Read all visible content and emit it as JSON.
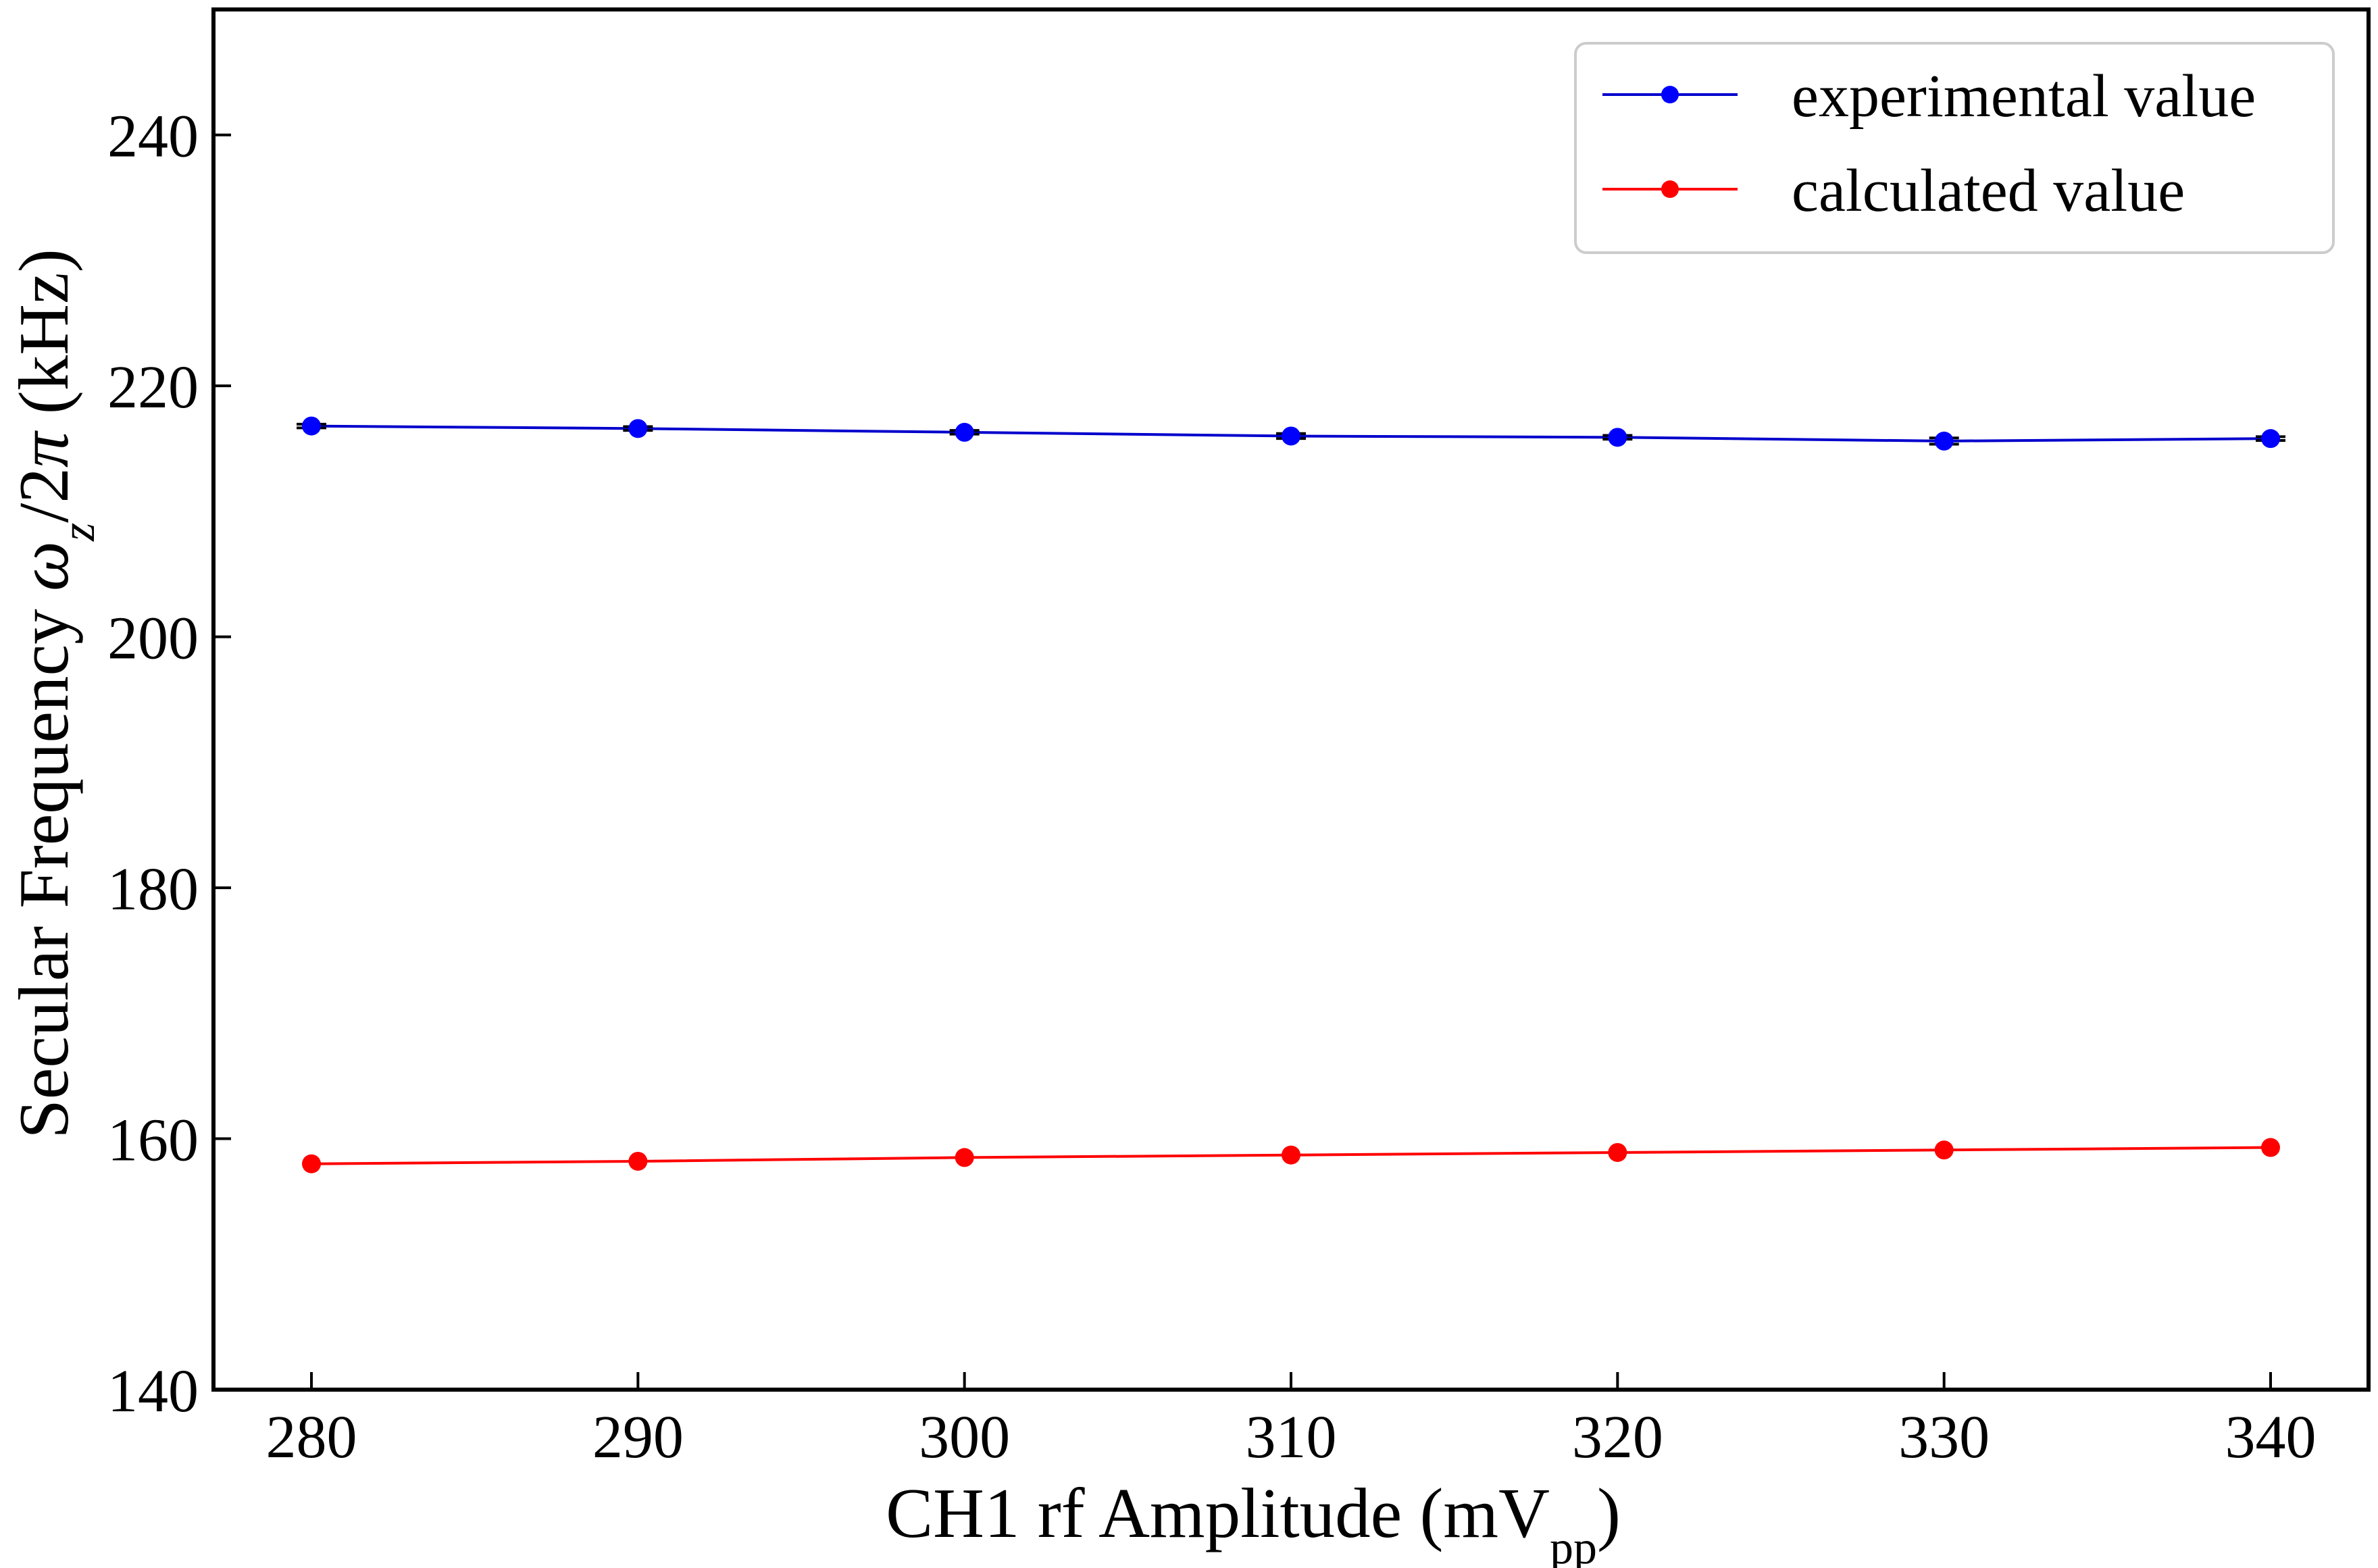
{
  "chart_data": {
    "type": "line",
    "xlabel": {
      "main": "CH1 rf Amplitude (mV",
      "sub": "pp",
      "close": ")"
    },
    "ylabel": {
      "main": "Secular Frequency ",
      "omega": "ω",
      "sub": "z",
      "rest": "/2",
      "pi": "π",
      "unit": " (kHz)"
    },
    "xlim": [
      277,
      343
    ],
    "ylim": [
      140,
      250
    ],
    "xticks": [
      280,
      290,
      300,
      310,
      320,
      330,
      340
    ],
    "yticks": [
      140,
      160,
      180,
      200,
      220,
      240
    ],
    "legend_position": "top-right",
    "grid": false,
    "x": [
      280,
      290,
      300,
      310,
      320,
      330,
      340
    ],
    "series": [
      {
        "name": "experimental value",
        "color": "#0000ff",
        "line_color": "#0000cc",
        "values": [
          216.8,
          216.6,
          216.3,
          216.0,
          215.9,
          215.6,
          215.8
        ],
        "error": [
          0.15,
          0.15,
          0.15,
          0.2,
          0.15,
          0.25,
          0.15
        ]
      },
      {
        "name": "calculated value",
        "color": "#ff0000",
        "line_color": "#ff0000",
        "values": [
          158.0,
          158.2,
          158.5,
          158.7,
          158.9,
          159.1,
          159.3
        ]
      }
    ]
  }
}
